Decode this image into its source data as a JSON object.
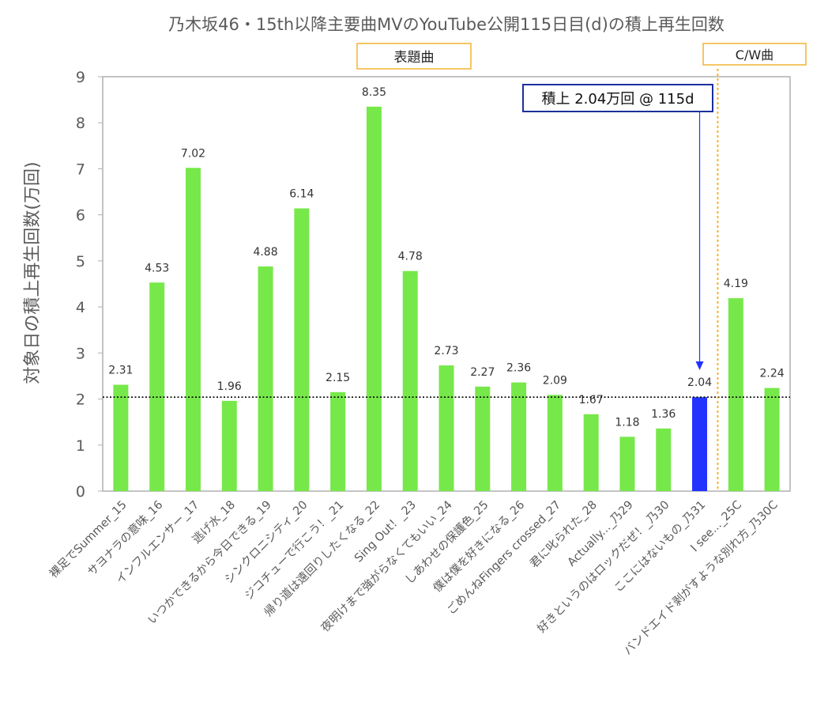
{
  "chart_data": {
    "type": "bar",
    "title": "乃木坂46・15th以降主要曲MVのYouTube公開115日目(d)の積上再生回数",
    "xlabel": "",
    "ylabel": "対象日の積上再生回数(万回)",
    "ylim": [
      0,
      9
    ],
    "yticks": [
      0,
      1,
      2,
      3,
      4,
      5,
      6,
      7,
      8,
      9
    ],
    "grid": false,
    "categories": [
      "裸足でSummer_15",
      "サヨナラの意味_16",
      "インフルエンサー_17",
      "逃げ水_18",
      "いつかできるから今日できる_19",
      "シンクロニシティ_20",
      "ジコチューで行こう！_21",
      "帰り道は遠回りしたくなる_22",
      "Sing Out！_23",
      "夜明けまで強がらなくてもいい_24",
      "しあわせの保護色_25",
      "僕は僕を好きになる_26",
      "ごめんねFingers crossed_27",
      "君に叱られた_28",
      "Actually..._乃29",
      "好きというのはロックだぜ！_乃30",
      "ここにはないもの_乃31",
      "I see..._25C",
      "バンドエイド剥がすような別れ方_乃30C"
    ],
    "values": [
      2.31,
      4.53,
      7.02,
      1.96,
      4.88,
      6.14,
      2.15,
      8.35,
      4.78,
      2.73,
      2.27,
      2.36,
      2.09,
      1.67,
      1.18,
      1.36,
      2.04,
      4.19,
      2.24
    ],
    "value_labels": [
      "2.31",
      "4.53",
      "7.02",
      "1.96",
      "4.88",
      "6.14",
      "2.15",
      "8.35",
      "4.78",
      "2.73",
      "2.27",
      "2.36",
      "2.09",
      "1.67",
      "1.18",
      "1.36",
      "2.04",
      "4.19",
      "2.24"
    ],
    "highlight_index": 16,
    "reference_line": 2.04,
    "section_labels": {
      "title_songs": "表題曲",
      "coupling_songs": "C/W曲"
    },
    "divider_after_index": 16,
    "annotation": {
      "text": "積上 2.04万回 @ 115d",
      "target_index": 16
    },
    "colors": {
      "bar": "#77e84a",
      "highlight_bar": "#2233ff",
      "axis_text": "#5a5a5a",
      "plot_border": "#b0b0b0",
      "section_border": "#f2b431",
      "divider": "#f2b431",
      "annotation_border": "#1b2f9c",
      "arrow": "#2233ff",
      "reference_line": "#000000"
    }
  }
}
